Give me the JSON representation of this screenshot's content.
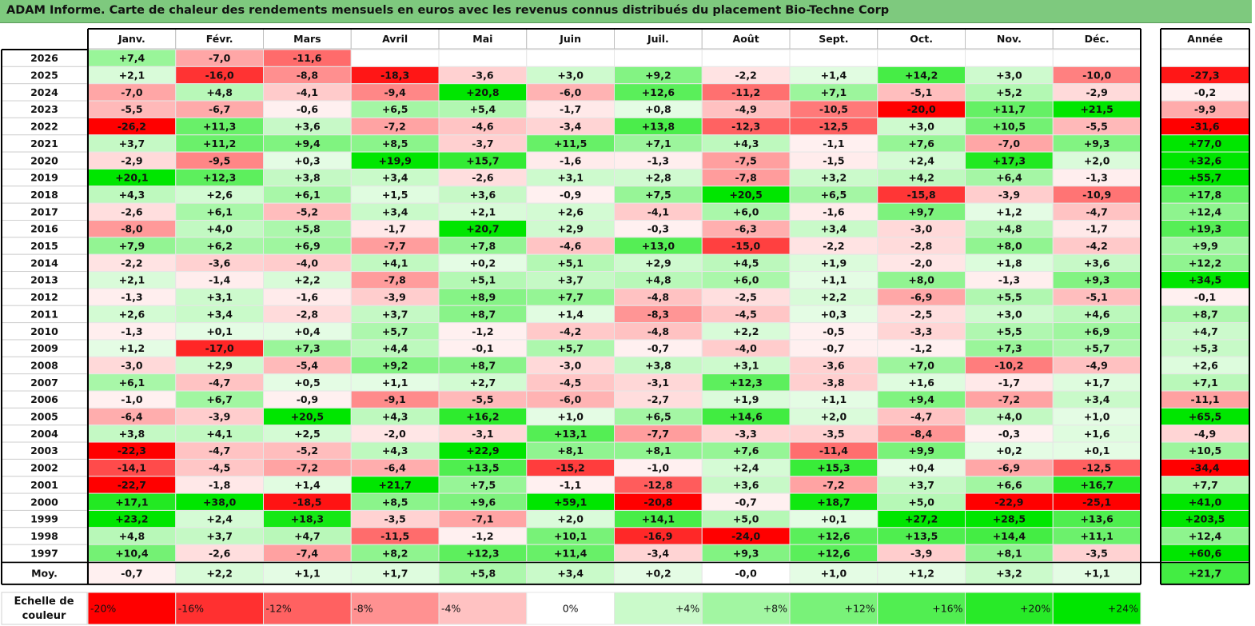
{
  "title": "ADAM Informe. Carte de chaleur des rendements mensuels en euros avec les revenus connus distribués du placement Bio-Techne Corp",
  "scale_label": "Echelle de couleur",
  "chart_data": {
    "type": "heatmap",
    "title": "ADAM Informe. Carte de chaleur des rendements mensuels en euros avec les revenus connus distribués du placement Bio-Techne Corp",
    "columns": [
      "Janv.",
      "Févr.",
      "Mars",
      "Avril",
      "Mai",
      "Juin",
      "Juil.",
      "Août",
      "Sept.",
      "Oct.",
      "Nov.",
      "Déc."
    ],
    "year_column": "Année",
    "rows": [
      {
        "label": "2026",
        "values": [
          "+7,4",
          "-7,0",
          "-11,6",
          "",
          "",
          "",
          "",
          "",
          "",
          "",
          "",
          ""
        ],
        "year": ""
      },
      {
        "label": "2025",
        "values": [
          "+2,1",
          "-16,0",
          "-8,8",
          "-18,3",
          "-3,6",
          "+3,0",
          "+9,2",
          "-2,2",
          "+1,4",
          "+14,2",
          "+3,0",
          "-10,0"
        ],
        "year": "-27,3"
      },
      {
        "label": "2024",
        "values": [
          "-7,0",
          "+4,8",
          "-4,1",
          "-9,4",
          "+20,8",
          "-6,0",
          "+12,6",
          "-11,2",
          "+7,1",
          "-5,1",
          "+5,2",
          "-2,9"
        ],
        "year": "-0,2"
      },
      {
        "label": "2023",
        "values": [
          "-5,5",
          "-6,7",
          "-0,6",
          "+6,5",
          "+5,4",
          "-1,7",
          "+0,8",
          "-4,9",
          "-10,5",
          "-20,0",
          "+11,7",
          "+21,5"
        ],
        "year": "-9,9"
      },
      {
        "label": "2022",
        "values": [
          "-26,2",
          "+11,3",
          "+3,6",
          "-7,2",
          "-4,6",
          "-3,4",
          "+13,8",
          "-12,3",
          "-12,5",
          "+3,0",
          "+10,5",
          "-5,5"
        ],
        "year": "-31,6"
      },
      {
        "label": "2021",
        "values": [
          "+3,7",
          "+11,2",
          "+9,4",
          "+8,5",
          "-3,7",
          "+11,5",
          "+7,1",
          "+4,3",
          "-1,1",
          "+7,6",
          "-7,0",
          "+9,3"
        ],
        "year": "+77,0"
      },
      {
        "label": "2020",
        "values": [
          "-2,9",
          "-9,5",
          "+0,3",
          "+19,9",
          "+15,7",
          "-1,6",
          "-1,3",
          "-7,5",
          "-1,5",
          "+2,4",
          "+17,3",
          "+2,0"
        ],
        "year": "+32,6"
      },
      {
        "label": "2019",
        "values": [
          "+20,1",
          "+12,3",
          "+3,8",
          "+3,4",
          "-2,6",
          "+3,1",
          "+2,8",
          "-7,8",
          "+3,2",
          "+4,2",
          "+6,4",
          "-1,3"
        ],
        "year": "+55,7"
      },
      {
        "label": "2018",
        "values": [
          "+4,3",
          "+2,6",
          "+6,1",
          "+1,5",
          "+3,6",
          "-0,9",
          "+7,5",
          "+20,5",
          "+6,5",
          "-15,8",
          "-3,9",
          "-10,9"
        ],
        "year": "+17,8"
      },
      {
        "label": "2017",
        "values": [
          "-2,6",
          "+6,1",
          "-5,2",
          "+3,4",
          "+2,1",
          "+2,6",
          "-4,1",
          "+6,0",
          "-1,6",
          "+9,7",
          "+1,2",
          "-4,7"
        ],
        "year": "+12,4"
      },
      {
        "label": "2016",
        "values": [
          "-8,0",
          "+4,0",
          "+5,8",
          "-1,7",
          "+20,7",
          "+2,9",
          "-0,3",
          "-6,3",
          "+3,4",
          "-3,0",
          "+4,8",
          "-1,7"
        ],
        "year": "+19,3"
      },
      {
        "label": "2015",
        "values": [
          "+7,9",
          "+6,2",
          "+6,9",
          "-7,7",
          "+7,8",
          "-4,6",
          "+13,0",
          "-15,0",
          "-2,2",
          "-2,8",
          "+8,0",
          "-4,2"
        ],
        "year": "+9,9"
      },
      {
        "label": "2014",
        "values": [
          "-2,2",
          "-3,6",
          "-4,0",
          "+4,1",
          "+0,2",
          "+5,1",
          "+2,9",
          "+4,5",
          "+1,9",
          "-2,0",
          "+1,8",
          "+3,6"
        ],
        "year": "+12,2"
      },
      {
        "label": "2013",
        "values": [
          "+2,1",
          "-1,4",
          "+2,2",
          "-7,8",
          "+5,1",
          "+3,7",
          "+4,8",
          "+6,0",
          "+1,1",
          "+8,0",
          "-1,3",
          "+9,3"
        ],
        "year": "+34,5"
      },
      {
        "label": "2012",
        "values": [
          "-1,3",
          "+3,1",
          "-1,6",
          "-3,9",
          "+8,9",
          "+7,7",
          "-4,8",
          "-2,5",
          "+2,2",
          "-6,9",
          "+5,5",
          "-5,1"
        ],
        "year": "-0,1"
      },
      {
        "label": "2011",
        "values": [
          "+2,6",
          "+3,4",
          "-2,8",
          "+3,7",
          "+8,7",
          "+1,4",
          "-8,3",
          "-4,5",
          "+0,3",
          "-2,5",
          "+3,0",
          "+4,6"
        ],
        "year": "+8,7"
      },
      {
        "label": "2010",
        "values": [
          "-1,3",
          "+0,1",
          "+0,4",
          "+5,7",
          "-1,2",
          "-4,2",
          "-4,8",
          "+2,2",
          "-0,5",
          "-3,3",
          "+5,5",
          "+6,9"
        ],
        "year": "+4,7"
      },
      {
        "label": "2009",
        "values": [
          "+1,2",
          "-17,0",
          "+7,3",
          "+4,4",
          "-0,1",
          "+5,7",
          "-0,7",
          "-4,0",
          "-0,7",
          "-1,2",
          "+7,3",
          "+5,7"
        ],
        "year": "+5,3"
      },
      {
        "label": "2008",
        "values": [
          "-3,0",
          "+2,9",
          "-5,4",
          "+9,2",
          "+8,7",
          "-3,0",
          "+3,8",
          "+3,1",
          "-3,6",
          "+7,0",
          "-10,2",
          "-4,9"
        ],
        "year": "+2,6"
      },
      {
        "label": "2007",
        "values": [
          "+6,1",
          "-4,7",
          "+0,5",
          "+1,1",
          "+2,7",
          "-4,5",
          "-3,1",
          "+12,3",
          "-3,8",
          "+1,6",
          "-1,7",
          "+1,7"
        ],
        "year": "+7,1"
      },
      {
        "label": "2006",
        "values": [
          "-1,0",
          "+6,7",
          "-0,9",
          "-9,1",
          "-5,5",
          "-6,0",
          "-2,7",
          "+1,9",
          "+1,1",
          "+9,4",
          "-7,2",
          "+3,4"
        ],
        "year": "-11,1"
      },
      {
        "label": "2005",
        "values": [
          "-6,4",
          "-3,9",
          "+20,5",
          "+4,3",
          "+16,2",
          "+1,0",
          "+6,5",
          "+14,6",
          "+2,0",
          "-4,7",
          "+4,0",
          "+1,0"
        ],
        "year": "+65,5"
      },
      {
        "label": "2004",
        "values": [
          "+3,8",
          "+4,1",
          "+2,5",
          "-2,0",
          "-3,1",
          "+13,1",
          "-7,7",
          "-3,3",
          "-3,5",
          "-8,4",
          "-0,3",
          "+1,6"
        ],
        "year": "-4,9"
      },
      {
        "label": "2003",
        "values": [
          "-22,3",
          "-4,7",
          "-5,2",
          "+4,3",
          "+22,9",
          "+8,1",
          "+8,1",
          "+7,6",
          "-11,4",
          "+9,9",
          "+0,2",
          "+0,1"
        ],
        "year": "+10,5"
      },
      {
        "label": "2002",
        "values": [
          "-14,1",
          "-4,5",
          "-7,2",
          "-6,4",
          "+13,5",
          "-15,2",
          "-1,0",
          "+2,4",
          "+15,3",
          "+0,4",
          "-6,9",
          "-12,5"
        ],
        "year": "-34,4"
      },
      {
        "label": "2001",
        "values": [
          "-22,7",
          "-1,8",
          "+1,4",
          "+21,7",
          "+7,5",
          "-1,1",
          "-12,8",
          "+3,6",
          "-7,2",
          "+3,7",
          "+6,6",
          "+16,7"
        ],
        "year": "+7,7"
      },
      {
        "label": "2000",
        "values": [
          "+17,1",
          "+38,0",
          "-18,5",
          "+8,5",
          "+9,6",
          "+59,1",
          "-20,8",
          "-0,7",
          "+18,7",
          "+5,0",
          "-22,9",
          "-25,1"
        ],
        "year": "+41,0"
      },
      {
        "label": "1999",
        "values": [
          "+23,2",
          "+2,4",
          "+18,3",
          "-3,5",
          "-7,1",
          "+2,0",
          "+14,1",
          "+5,0",
          "+0,1",
          "+27,2",
          "+28,5",
          "+13,6"
        ],
        "year": "+203,5"
      },
      {
        "label": "1998",
        "values": [
          "+4,8",
          "+3,7",
          "+4,7",
          "-11,5",
          "-1,2",
          "+10,1",
          "-16,9",
          "-24,0",
          "+12,6",
          "+13,5",
          "+14,4",
          "+11,1"
        ],
        "year": "+12,4"
      },
      {
        "label": "1997",
        "values": [
          "+10,4",
          "-2,6",
          "-7,4",
          "+8,2",
          "+12,3",
          "+11,4",
          "-3,4",
          "+9,3",
          "+12,6",
          "-3,9",
          "+8,1",
          "-3,5"
        ],
        "year": "+60,6"
      }
    ],
    "average_row": {
      "label": "Moy.",
      "values": [
        "-0,7",
        "+2,2",
        "+1,1",
        "+1,7",
        "+5,8",
        "+3,4",
        "+0,2",
        "-0,0",
        "+1,0",
        "+1,2",
        "+3,2",
        "+1,1"
      ],
      "year": "+21,7"
    },
    "color_scale": {
      "labels": [
        "-20%",
        "-16%",
        "-12%",
        "-8%",
        "-4%",
        "0%",
        "+4%",
        "+8%",
        "+12%",
        "+16%",
        "+20%",
        "+24%"
      ],
      "values": [
        -20,
        -16,
        -12,
        -8,
        -4,
        0,
        4,
        8,
        12,
        16,
        20,
        24
      ],
      "negative_color": "#ff0000",
      "positive_color": "#00e600",
      "neutral_color": "#ffffff"
    }
  }
}
